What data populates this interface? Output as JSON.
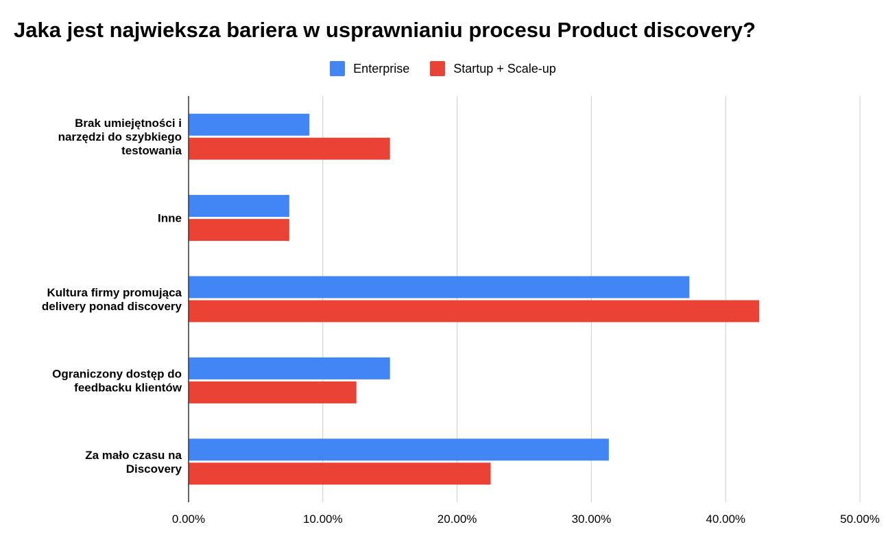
{
  "chart_data": {
    "type": "bar",
    "orientation": "horizontal",
    "title": "Jaka jest najwieksza bariera w usprawnianiu procesu Product discovery?",
    "categories": [
      [
        "Brak umiejętności i",
        "narzędzi do szybkiego",
        "testowania"
      ],
      [
        "Inne"
      ],
      [
        "Kultura firmy promująca",
        "delivery ponad discovery"
      ],
      [
        "Ograniczony dostęp do",
        "feedbacku klientów"
      ],
      [
        "Za mało czasu na",
        "Discovery"
      ]
    ],
    "series": [
      {
        "name": "Enterprise",
        "color": "#4285f4",
        "values": [
          0.09,
          0.075,
          0.373,
          0.15,
          0.313
        ]
      },
      {
        "name": "Startup + Scale-up",
        "color": "#ea4335",
        "values": [
          0.15,
          0.075,
          0.425,
          0.125,
          0.225
        ]
      }
    ],
    "xlim": [
      0,
      0.5
    ],
    "xticks": [
      "0.00%",
      "10.00%",
      "20.00%",
      "30.00%",
      "40.00%",
      "50.00%"
    ],
    "grid": true,
    "legend_position": "top"
  }
}
